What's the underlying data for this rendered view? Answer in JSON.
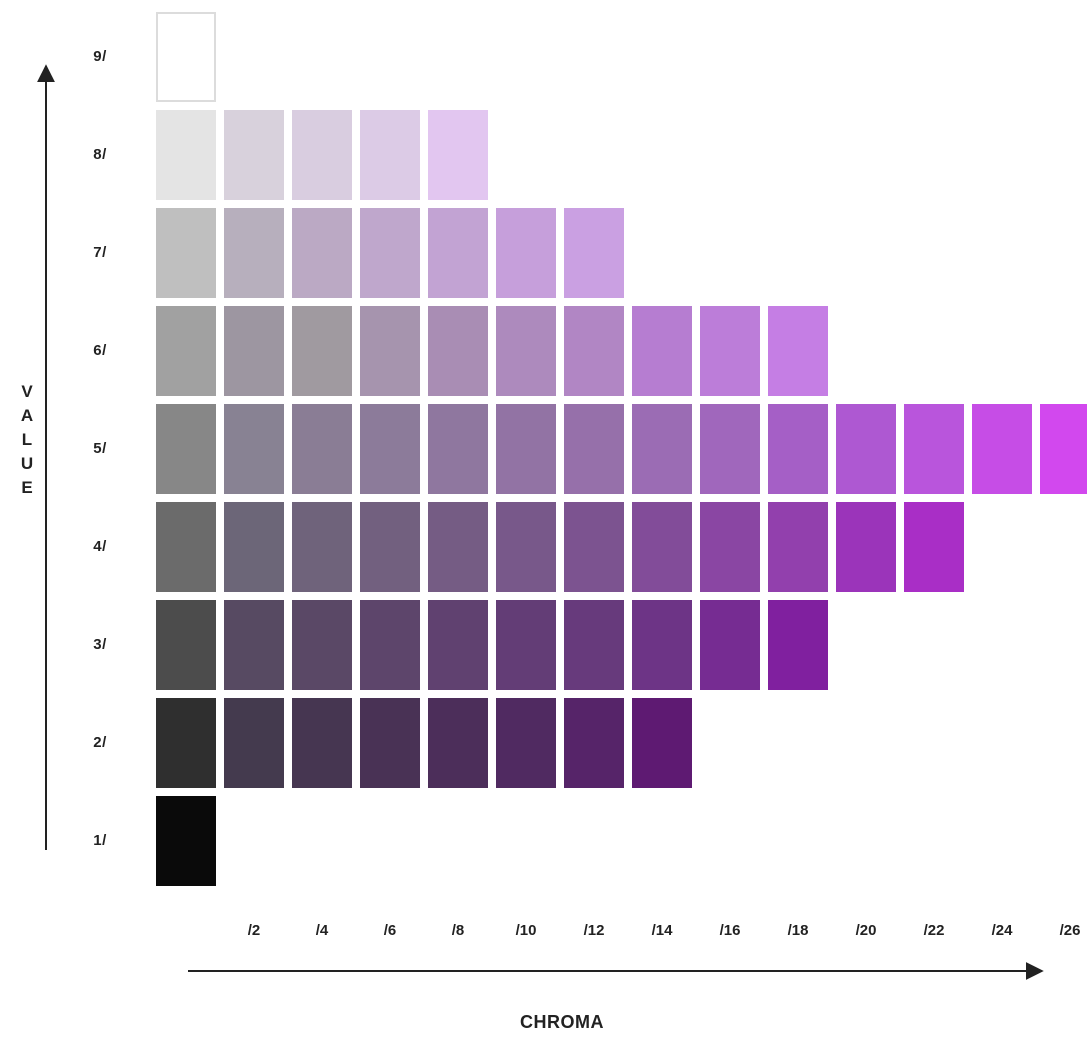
{
  "chart_data": {
    "type": "heatmap",
    "ylabel": "VALUE",
    "xlabel": "CHROMA",
    "value_labels": [
      "9/",
      "8/",
      "7/",
      "6/",
      "5/",
      "4/",
      "3/",
      "2/",
      "1/"
    ],
    "chroma_labels": [
      "/2",
      "/4",
      "/6",
      "/8",
      "/10",
      "/12",
      "/14",
      "/16",
      "/18",
      "/20",
      "/22",
      "/24",
      "/26"
    ],
    "rows": [
      {
        "value": "9/",
        "colors": [
          "#ffffff"
        ],
        "neutral_outlined": true
      },
      {
        "value": "8/",
        "colors": [
          "#e4e4e4",
          "#d8d1dc",
          "#d9cde0",
          "#dccbe6",
          "#e2c6f0"
        ]
      },
      {
        "value": "7/",
        "colors": [
          "#bfbfbf",
          "#b7afbd",
          "#bba9c4",
          "#bfa7cc",
          "#c2a3d3",
          "#c69fdb",
          "#caa0e2"
        ]
      },
      {
        "value": "6/",
        "colors": [
          "#a1a1a1",
          "#9d96a1",
          "#a09aa0",
          "#a694ae",
          "#a98db4",
          "#ad8abd",
          "#b186c4",
          "#b67dd1",
          "#bc7dd9",
          "#c57ee4"
        ]
      },
      {
        "value": "5/",
        "colors": [
          "#878787",
          "#888293",
          "#8a7d95",
          "#8c7b9a",
          "#8f779f",
          "#9273a4",
          "#9670aa",
          "#9b6cb4",
          "#a067bc",
          "#a55fc6",
          "#ae58d2",
          "#b955dc",
          "#c64de6",
          "#d248ee"
        ]
      },
      {
        "value": "4/",
        "colors": [
          "#6b6b6b",
          "#6c6678",
          "#6f637b",
          "#72607f",
          "#755c84",
          "#78588a",
          "#7c5390",
          "#824c99",
          "#8a46a3",
          "#9240ad",
          "#9b34ba",
          "#a92ec6"
        ]
      },
      {
        "value": "3/",
        "colors": [
          "#4c4c4c",
          "#574a62",
          "#5a4866",
          "#5d456b",
          "#604170",
          "#633d76",
          "#673a7c",
          "#6d3486",
          "#762c92",
          "#80209f"
        ]
      },
      {
        "value": "2/",
        "colors": [
          "#2f2f2f",
          "#443a4e",
          "#463651",
          "#493255",
          "#4c2e5a",
          "#502a61",
          "#562469",
          "#5e1a72"
        ]
      },
      {
        "value": "1/",
        "colors": [
          "#0a0a0a"
        ]
      }
    ]
  }
}
